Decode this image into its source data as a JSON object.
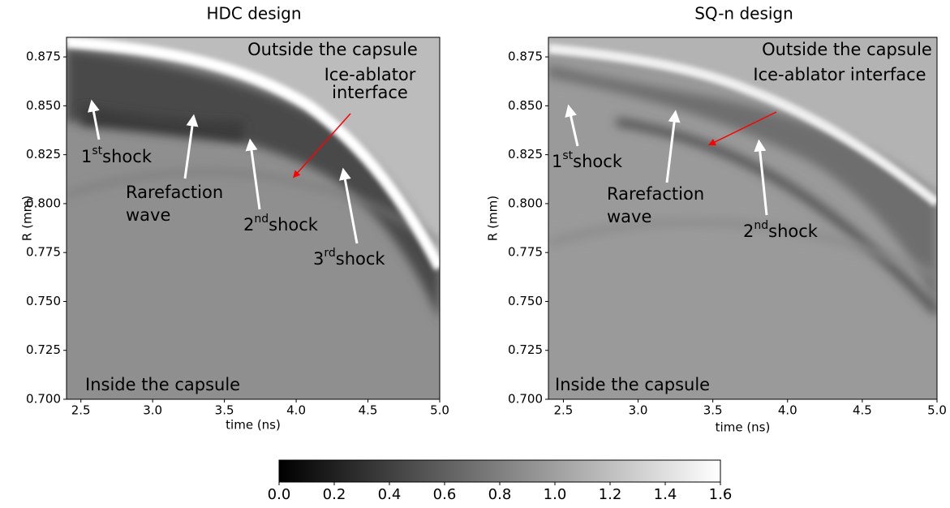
{
  "chart_data": [
    {
      "type": "image",
      "title": "HDC design",
      "xlabel": "time (ns)",
      "ylabel": "R (mm)",
      "xlim": [
        2.4,
        5.0
      ],
      "ylim": [
        0.7,
        0.885
      ],
      "xticks": [
        2.5,
        {
          "value": 3.0,
          "label": "3.0"
        },
        3.5,
        {
          "value": 4.0,
          "label": "4.0"
        },
        4.5,
        {
          "value": 5.0,
          "label": "5.0"
        }
      ],
      "yticks": [
        {
          "value": 0.7,
          "label": "0.700"
        },
        0.725,
        {
          "value": 0.75,
          "label": "0.750"
        },
        0.775,
        {
          "value": 0.8,
          "label": "0.800"
        },
        0.825,
        {
          "value": 0.85,
          "label": "0.850"
        },
        0.875
      ],
      "annotations": [
        {
          "text": "Outside the capsule",
          "color": "#000000"
        },
        {
          "text": "Ice-ablator",
          "color": "#ff0000"
        },
        {
          "text": "interface",
          "color": "#ff0000"
        },
        {
          "base": "1",
          "sup": "st",
          "text": "shock",
          "color": "#000000"
        },
        {
          "text": "Rarefaction",
          "color": "#000000"
        },
        {
          "text": "wave",
          "color": "#000000"
        },
        {
          "base": "2",
          "sup": "nd",
          "text": "shock",
          "color": "#000000"
        },
        {
          "base": "3",
          "sup": "rd",
          "text": "shock",
          "color": "#000000"
        },
        {
          "text": "Inside the capsule",
          "color": "#000000"
        }
      ]
    },
    {
      "type": "image",
      "title": "SQ-n design",
      "xlabel": "time (ns)",
      "ylabel": "R (mm)",
      "xlim": [
        2.4,
        5.0
      ],
      "ylim": [
        0.7,
        0.885
      ],
      "xticks": [
        2.5,
        {
          "value": 3.0,
          "label": "3.0"
        },
        3.5,
        {
          "value": 4.0,
          "label": "4.0"
        },
        4.5,
        {
          "value": 5.0,
          "label": "5.0"
        }
      ],
      "yticks": [
        {
          "value": 0.7,
          "label": "0.700"
        },
        0.725,
        {
          "value": 0.75,
          "label": "0.750"
        },
        0.775,
        {
          "value": 0.8,
          "label": "0.800"
        },
        0.825,
        {
          "value": 0.85,
          "label": "0.850"
        },
        0.875
      ],
      "annotations": [
        {
          "text": "Outside the capsule",
          "color": "#000000"
        },
        {
          "text": "Ice-ablator interface",
          "color": "#ff0000"
        },
        {
          "base": "1",
          "sup": "st",
          "text": "shock",
          "color": "#000000"
        },
        {
          "text": "Rarefaction",
          "color": "#000000"
        },
        {
          "text": "wave",
          "color": "#000000"
        },
        {
          "base": "2",
          "sup": "nd",
          "text": "shock",
          "color": "#000000"
        },
        {
          "text": "Inside the capsule",
          "color": "#000000"
        }
      ]
    },
    {
      "type": "colorbar",
      "colormap": "gray",
      "xlim": [
        0,
        1.6
      ],
      "xticks": [
        {
          "value": 0,
          "label": "0.0"
        },
        0.2,
        0.4,
        0.6,
        0.8,
        {
          "value": 1.0,
          "label": "1.0"
        },
        1.2,
        1.4,
        1.6
      ]
    }
  ]
}
